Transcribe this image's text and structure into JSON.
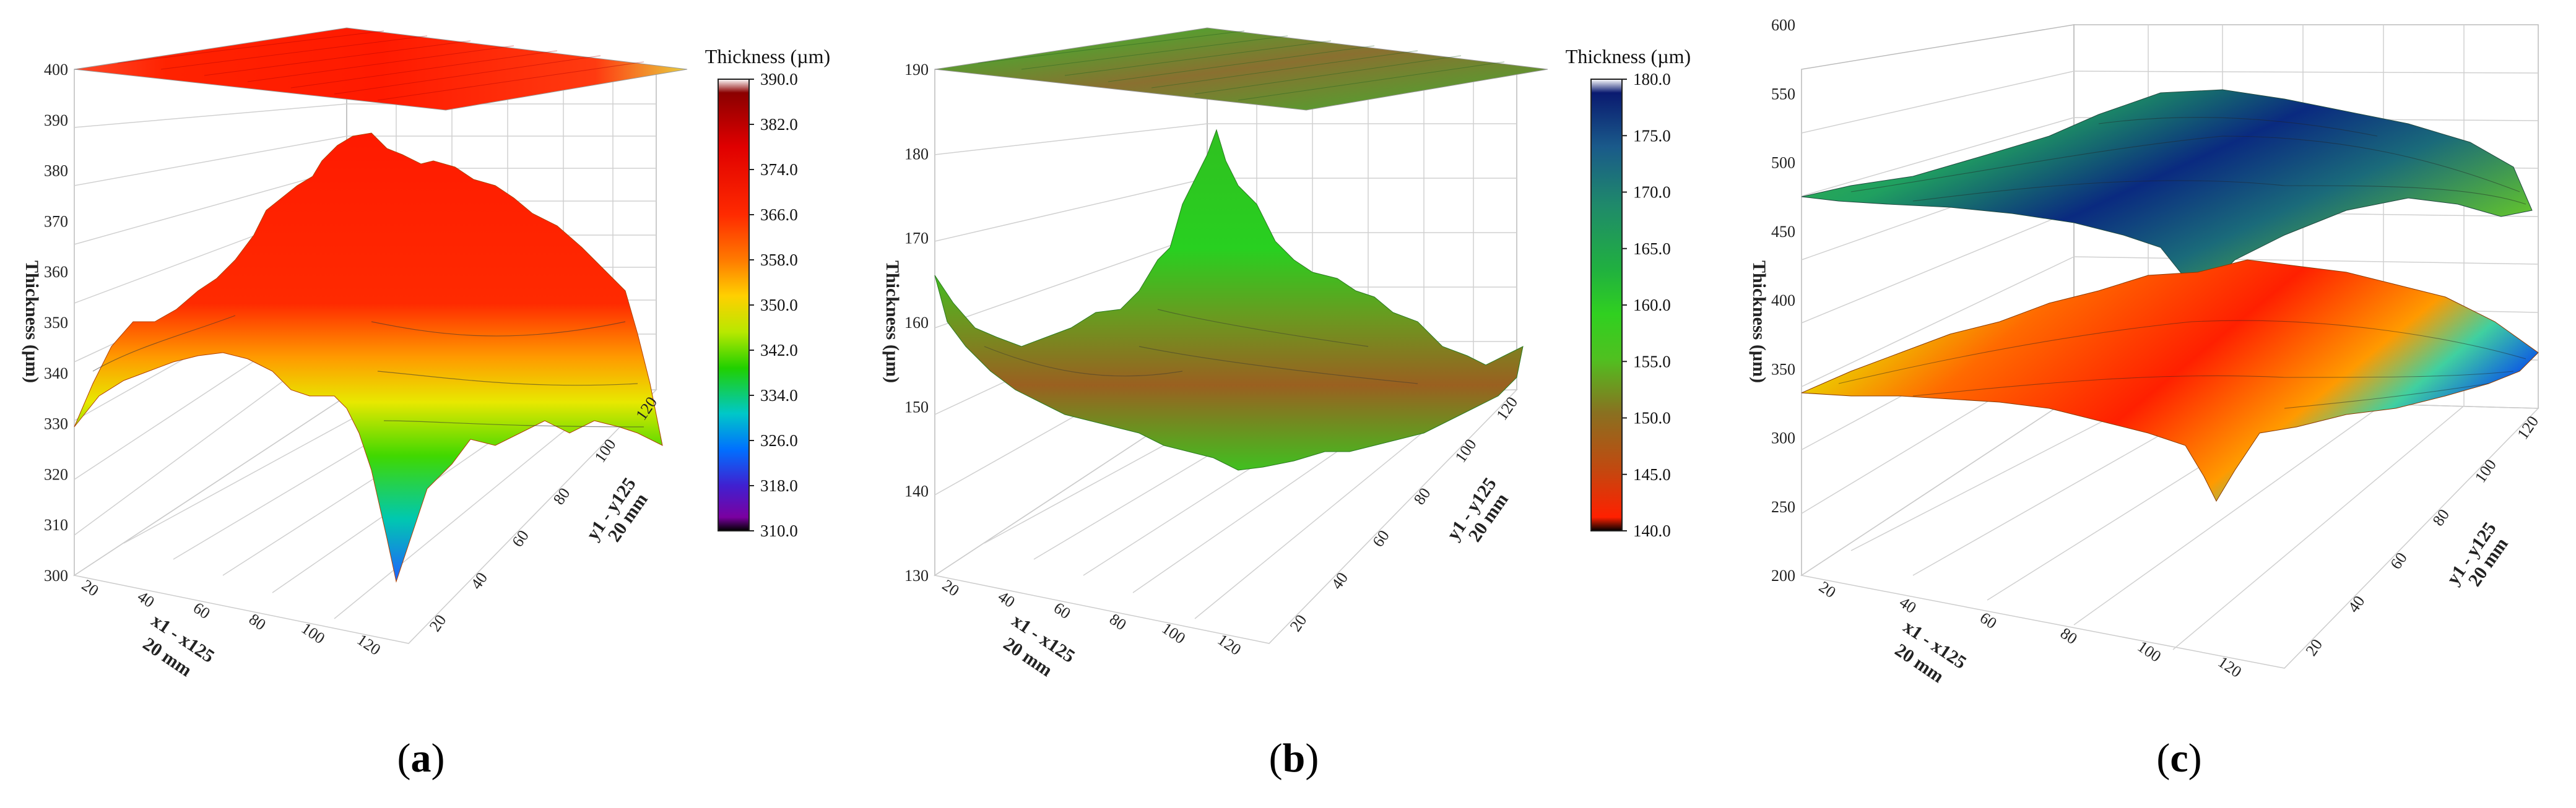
{
  "figure": {
    "captions": [
      {
        "open": "(",
        "letter": "a",
        "close": ")"
      },
      {
        "open": "(",
        "letter": "b",
        "close": ")"
      },
      {
        "open": "(",
        "letter": "c",
        "close": ")"
      }
    ]
  },
  "chart_data": [
    {
      "type": "surface3d",
      "panel": "a",
      "zlabel": "Thickness (µm)",
      "xlabel_line1": "x1 - x125",
      "xlabel_line2": "20 mm",
      "ylabel_line1": "y1 - y125",
      "ylabel_line2": "20 mm",
      "zlim": [
        300,
        400
      ],
      "z_ticks": [
        "300",
        "310",
        "320",
        "330",
        "340",
        "350",
        "360",
        "370",
        "380",
        "390",
        "400"
      ],
      "x_ticks": [
        "20",
        "40",
        "60",
        "80",
        "100",
        "120"
      ],
      "y_ticks": [
        "20",
        "40",
        "60",
        "80",
        "100",
        "120"
      ],
      "colorbar": {
        "title": "Thickness (µm)",
        "range": [
          310,
          390
        ],
        "ticks": [
          "390.0",
          "382.0",
          "374.0",
          "366.0",
          "358.0",
          "350.0",
          "342.0",
          "334.0",
          "326.0",
          "318.0",
          "310.0"
        ],
        "colors": [
          "#ffffff",
          "#8b0000",
          "#e00000",
          "#ff2a00",
          "#ff6a00",
          "#ffb000",
          "#e8e800",
          "#5de800",
          "#00d000",
          "#00c8c8",
          "#0070ff",
          "#4020d0",
          "#7a00a0",
          "#000000"
        ]
      },
      "projected_top_plane": true,
      "ridge_profile": [
        332,
        338,
        346,
        348,
        345,
        350,
        352,
        355,
        360,
        364,
        366,
        368,
        370,
        372,
        374,
        376,
        380,
        384,
        378,
        372,
        374,
        376,
        372,
        368,
        362,
        355,
        345,
        335,
        322,
        316
      ]
    },
    {
      "type": "surface3d",
      "panel": "b",
      "zlabel": "Thickness (µm)",
      "xlabel_line1": "x1 - x125",
      "xlabel_line2": "20 mm",
      "ylabel_line1": "y1 - y125",
      "ylabel_line2": "20 mm",
      "zlim": [
        130,
        190
      ],
      "z_ticks": [
        "130",
        "140",
        "150",
        "160",
        "170",
        "180",
        "190"
      ],
      "x_ticks": [
        "20",
        "40",
        "60",
        "80",
        "100",
        "120"
      ],
      "y_ticks": [
        "20",
        "40",
        "60",
        "80",
        "100",
        "120"
      ],
      "colorbar": {
        "title": "Thickness (µm)",
        "range": [
          140,
          180
        ],
        "ticks": [
          "180.0",
          "175.0",
          "170.0",
          "165.0",
          "160.0",
          "155.0",
          "150.0",
          "145.0",
          "140.0"
        ],
        "colors": [
          "#ffffff",
          "#0a1a70",
          "#1a5a8a",
          "#1f8a6a",
          "#20b040",
          "#30d020",
          "#50c020",
          "#8a7020",
          "#c04a10",
          "#ff2000",
          "#000000"
        ]
      },
      "projected_top_plane": true,
      "ridge_profile": [
        165,
        158,
        154,
        152,
        150,
        152,
        155,
        158,
        160,
        163,
        166,
        172,
        178,
        170,
        166,
        164,
        162,
        160,
        158,
        156,
        154,
        153,
        152,
        151,
        152,
        153,
        154,
        155
      ]
    },
    {
      "type": "surface3d",
      "panel": "c",
      "zlabel": "Thickness (µm)",
      "xlabel_line1": "x1 - x125",
      "xlabel_line2": "20 mm",
      "ylabel_line1": "y1 - y125",
      "ylabel_line2": "20 mm",
      "zlim": [
        200,
        600
      ],
      "z_ticks": [
        "200",
        "250",
        "300",
        "350",
        "400",
        "450",
        "500",
        "550",
        "600"
      ],
      "x_ticks": [
        "20",
        "40",
        "60",
        "80",
        "100",
        "120"
      ],
      "y_ticks": [
        "20",
        "40",
        "60",
        "80",
        "100",
        "120"
      ],
      "surfaces": [
        {
          "layer": "upper",
          "approx_range": [
            440,
            560
          ]
        },
        {
          "layer": "lower",
          "approx_range": [
            240,
            400
          ]
        }
      ]
    }
  ]
}
